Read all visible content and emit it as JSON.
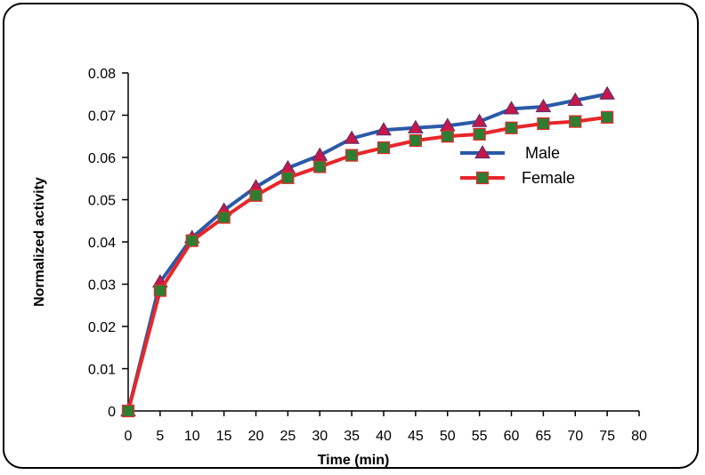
{
  "chart_data": {
    "type": "line",
    "xlabel": "Time (min)",
    "ylabel": "Normalized activity",
    "xlim": [
      0,
      80
    ],
    "ylim": [
      0,
      0.08
    ],
    "xticks": [
      "0",
      "5",
      "10",
      "15",
      "20",
      "25",
      "30",
      "35",
      "40",
      "45",
      "50",
      "55",
      "60",
      "65",
      "70",
      "75",
      "80"
    ],
    "yticks": [
      "0",
      "0.01",
      "0.02",
      "0.03",
      "0.04",
      "0.05",
      "0.06",
      "0.07",
      "0.08"
    ],
    "x": [
      0,
      5,
      10,
      15,
      20,
      25,
      30,
      35,
      40,
      45,
      50,
      55,
      60,
      65,
      70,
      75
    ],
    "series": [
      {
        "name": "Male",
        "values": [
          0,
          0.0305,
          0.041,
          0.0475,
          0.053,
          0.0575,
          0.0605,
          0.0645,
          0.0665,
          0.067,
          0.0675,
          0.0685,
          0.0715,
          0.072,
          0.0735,
          0.075
        ],
        "line_color": "#2a5aa8",
        "marker": "triangle",
        "marker_color": "#c4184a"
      },
      {
        "name": "Female",
        "values": [
          0,
          0.0285,
          0.0403,
          0.0458,
          0.051,
          0.0552,
          0.0578,
          0.0605,
          0.0623,
          0.064,
          0.065,
          0.0655,
          0.067,
          0.068,
          0.0685,
          0.0695
        ],
        "line_color": "#e8262a",
        "marker": "square",
        "marker_color": "#2e7d32"
      }
    ],
    "legend_position": "upper-right-inside",
    "grid": false
  }
}
